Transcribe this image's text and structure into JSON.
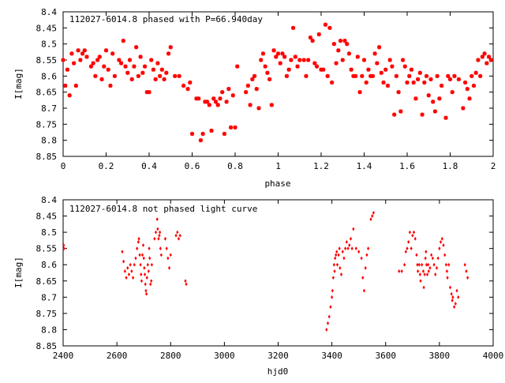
{
  "chart_data": [
    {
      "type": "scatter",
      "title": "112027-6014.8 phased with P=66.940day",
      "xlabel": "phase",
      "ylabel": "I[mag]",
      "xlim": [
        0,
        2
      ],
      "ylim": [
        8.4,
        8.85
      ],
      "y_inverted": true,
      "grid": false,
      "marker": "star",
      "color": "#ff0000",
      "xticks": [
        "0",
        "0.2",
        "0.4",
        "0.6",
        "0.8",
        "1",
        "1.2",
        "1.4",
        "1.6",
        "1.8",
        "2"
      ],
      "yticks": [
        "8.4",
        "8.45",
        "8.5",
        "8.55",
        "8.6",
        "8.65",
        "8.7",
        "8.75",
        "8.8",
        "8.85"
      ],
      "points": [
        [
          0.0,
          8.55
        ],
        [
          0.01,
          8.63
        ],
        [
          0.02,
          8.58
        ],
        [
          0.03,
          8.66
        ],
        [
          0.04,
          8.53
        ],
        [
          0.05,
          8.56
        ],
        [
          0.06,
          8.63
        ],
        [
          0.07,
          8.52
        ],
        [
          0.08,
          8.55
        ],
        [
          0.09,
          8.53
        ],
        [
          0.1,
          8.52
        ],
        [
          0.11,
          8.54
        ],
        [
          0.13,
          8.57
        ],
        [
          0.14,
          8.56
        ],
        [
          0.15,
          8.6
        ],
        [
          0.16,
          8.55
        ],
        [
          0.17,
          8.54
        ],
        [
          0.18,
          8.61
        ],
        [
          0.19,
          8.57
        ],
        [
          0.2,
          8.52
        ],
        [
          0.21,
          8.58
        ],
        [
          0.22,
          8.63
        ],
        [
          0.23,
          8.53
        ],
        [
          0.24,
          8.6
        ],
        [
          0.26,
          8.55
        ],
        [
          0.27,
          8.56
        ],
        [
          0.28,
          8.49
        ],
        [
          0.29,
          8.57
        ],
        [
          0.3,
          8.59
        ],
        [
          0.31,
          8.55
        ],
        [
          0.32,
          8.61
        ],
        [
          0.33,
          8.57
        ],
        [
          0.34,
          8.51
        ],
        [
          0.35,
          8.6
        ],
        [
          0.36,
          8.54
        ],
        [
          0.37,
          8.59
        ],
        [
          0.38,
          8.57
        ],
        [
          0.39,
          8.65
        ],
        [
          0.4,
          8.65
        ],
        [
          0.41,
          8.55
        ],
        [
          0.42,
          8.58
        ],
        [
          0.43,
          8.61
        ],
        [
          0.44,
          8.56
        ],
        [
          0.45,
          8.6
        ],
        [
          0.46,
          8.58
        ],
        [
          0.47,
          8.61
        ],
        [
          0.48,
          8.59
        ],
        [
          0.49,
          8.53
        ],
        [
          0.5,
          8.51
        ],
        [
          0.52,
          8.6
        ],
        [
          0.54,
          8.6
        ],
        [
          0.56,
          8.63
        ],
        [
          0.58,
          8.64
        ],
        [
          0.59,
          8.62
        ],
        [
          0.6,
          8.78
        ],
        [
          0.62,
          8.67
        ],
        [
          0.63,
          8.67
        ],
        [
          0.64,
          8.8
        ],
        [
          0.65,
          8.78
        ],
        [
          0.66,
          8.68
        ],
        [
          0.67,
          8.68
        ],
        [
          0.68,
          8.69
        ],
        [
          0.69,
          8.77
        ],
        [
          0.7,
          8.67
        ],
        [
          0.71,
          8.68
        ],
        [
          0.72,
          8.69
        ],
        [
          0.73,
          8.67
        ],
        [
          0.74,
          8.65
        ],
        [
          0.75,
          8.78
        ],
        [
          0.76,
          8.68
        ],
        [
          0.77,
          8.64
        ],
        [
          0.78,
          8.76
        ],
        [
          0.79,
          8.66
        ],
        [
          0.8,
          8.76
        ],
        [
          0.81,
          8.57
        ],
        [
          0.85,
          8.65
        ],
        [
          0.86,
          8.63
        ],
        [
          0.87,
          8.69
        ],
        [
          0.88,
          8.61
        ],
        [
          0.89,
          8.6
        ],
        [
          0.9,
          8.64
        ],
        [
          0.91,
          8.7
        ],
        [
          0.92,
          8.55
        ],
        [
          0.93,
          8.53
        ],
        [
          0.94,
          8.57
        ],
        [
          0.95,
          8.59
        ],
        [
          0.96,
          8.61
        ],
        [
          0.97,
          8.69
        ],
        [
          0.98,
          8.52
        ],
        [
          0.99,
          8.54
        ],
        [
          1.0,
          8.53
        ],
        [
          1.01,
          8.56
        ],
        [
          1.02,
          8.53
        ],
        [
          1.03,
          8.54
        ],
        [
          1.04,
          8.6
        ],
        [
          1.05,
          8.58
        ],
        [
          1.06,
          8.55
        ],
        [
          1.07,
          8.45
        ],
        [
          1.08,
          8.54
        ],
        [
          1.09,
          8.57
        ],
        [
          1.1,
          8.55
        ],
        [
          1.12,
          8.55
        ],
        [
          1.13,
          8.6
        ],
        [
          1.14,
          8.55
        ],
        [
          1.15,
          8.48
        ],
        [
          1.16,
          8.49
        ],
        [
          1.17,
          8.56
        ],
        [
          1.18,
          8.57
        ],
        [
          1.19,
          8.47
        ],
        [
          1.2,
          8.58
        ],
        [
          1.21,
          8.58
        ],
        [
          1.22,
          8.44
        ],
        [
          1.23,
          8.6
        ],
        [
          1.24,
          8.45
        ],
        [
          1.25,
          8.62
        ],
        [
          1.26,
          8.5
        ],
        [
          1.27,
          8.56
        ],
        [
          1.28,
          8.52
        ],
        [
          1.29,
          8.49
        ],
        [
          1.3,
          8.55
        ],
        [
          1.31,
          8.49
        ],
        [
          1.32,
          8.5
        ],
        [
          1.33,
          8.53
        ],
        [
          1.34,
          8.58
        ],
        [
          1.35,
          8.6
        ],
        [
          1.36,
          8.6
        ],
        [
          1.37,
          8.54
        ],
        [
          1.38,
          8.65
        ],
        [
          1.39,
          8.6
        ],
        [
          1.4,
          8.55
        ],
        [
          1.41,
          8.62
        ],
        [
          1.42,
          8.58
        ],
        [
          1.43,
          8.6
        ],
        [
          1.44,
          8.6
        ],
        [
          1.45,
          8.53
        ],
        [
          1.46,
          8.56
        ],
        [
          1.47,
          8.51
        ],
        [
          1.48,
          8.59
        ],
        [
          1.49,
          8.62
        ],
        [
          1.5,
          8.58
        ],
        [
          1.51,
          8.63
        ],
        [
          1.52,
          8.55
        ],
        [
          1.53,
          8.57
        ],
        [
          1.54,
          8.72
        ],
        [
          1.55,
          8.6
        ],
        [
          1.56,
          8.65
        ],
        [
          1.57,
          8.71
        ],
        [
          1.58,
          8.55
        ],
        [
          1.59,
          8.57
        ],
        [
          1.6,
          8.62
        ],
        [
          1.61,
          8.6
        ],
        [
          1.62,
          8.58
        ],
        [
          1.63,
          8.62
        ],
        [
          1.64,
          8.67
        ],
        [
          1.65,
          8.61
        ],
        [
          1.66,
          8.59
        ],
        [
          1.67,
          8.72
        ],
        [
          1.68,
          8.62
        ],
        [
          1.69,
          8.6
        ],
        [
          1.7,
          8.66
        ],
        [
          1.71,
          8.61
        ],
        [
          1.72,
          8.68
        ],
        [
          1.73,
          8.71
        ],
        [
          1.74,
          8.6
        ],
        [
          1.75,
          8.67
        ],
        [
          1.76,
          8.63
        ],
        [
          1.78,
          8.73
        ],
        [
          1.79,
          8.6
        ],
        [
          1.8,
          8.61
        ],
        [
          1.81,
          8.65
        ],
        [
          1.82,
          8.6
        ],
        [
          1.84,
          8.61
        ],
        [
          1.86,
          8.7
        ],
        [
          1.87,
          8.62
        ],
        [
          1.88,
          8.64
        ],
        [
          1.89,
          8.67
        ],
        [
          1.9,
          8.6
        ],
        [
          1.91,
          8.63
        ],
        [
          1.92,
          8.59
        ],
        [
          1.93,
          8.55
        ],
        [
          1.94,
          8.6
        ],
        [
          1.95,
          8.54
        ],
        [
          1.96,
          8.53
        ],
        [
          1.97,
          8.56
        ],
        [
          1.98,
          8.54
        ],
        [
          1.99,
          8.55
        ]
      ]
    },
    {
      "type": "scatter",
      "title": "112027-6014.8 not phased light curve",
      "xlabel": "hjd0",
      "ylabel": "I[mag]",
      "xlim": [
        2400,
        4000
      ],
      "ylim": [
        8.4,
        8.85
      ],
      "y_inverted": true,
      "grid": false,
      "marker": "dot",
      "color": "#ff0000",
      "xticks": [
        "2400",
        "2600",
        "2800",
        "3000",
        "3200",
        "3400",
        "3600",
        "3800",
        "4000"
      ],
      "yticks": [
        "8.4",
        "8.45",
        "8.5",
        "8.55",
        "8.6",
        "8.65",
        "8.7",
        "8.75",
        "8.8",
        "8.85"
      ],
      "points": [
        [
          2402,
          8.54
        ],
        [
          2403,
          8.55
        ],
        [
          2620,
          8.56
        ],
        [
          2625,
          8.59
        ],
        [
          2630,
          8.62
        ],
        [
          2635,
          8.64
        ],
        [
          2640,
          8.61
        ],
        [
          2645,
          8.63
        ],
        [
          2650,
          8.6
        ],
        [
          2655,
          8.62
        ],
        [
          2660,
          8.64
        ],
        [
          2665,
          8.6
        ],
        [
          2670,
          8.58
        ],
        [
          2675,
          8.55
        ],
        [
          2680,
          8.53
        ],
        [
          2682,
          8.52
        ],
        [
          2685,
          8.57
        ],
        [
          2688,
          8.6
        ],
        [
          2690,
          8.63
        ],
        [
          2692,
          8.65
        ],
        [
          2695,
          8.57
        ],
        [
          2698,
          8.54
        ],
        [
          2700,
          8.58
        ],
        [
          2702,
          8.61
        ],
        [
          2704,
          8.63
        ],
        [
          2706,
          8.66
        ],
        [
          2708,
          8.68
        ],
        [
          2710,
          8.69
        ],
        [
          2712,
          8.64
        ],
        [
          2715,
          8.6
        ],
        [
          2718,
          8.62
        ],
        [
          2720,
          8.55
        ],
        [
          2722,
          8.58
        ],
        [
          2725,
          8.66
        ],
        [
          2728,
          8.65
        ],
        [
          2730,
          8.6
        ],
        [
          2740,
          8.52
        ],
        [
          2745,
          8.5
        ],
        [
          2750,
          8.46
        ],
        [
          2752,
          8.49
        ],
        [
          2755,
          8.52
        ],
        [
          2758,
          8.51
        ],
        [
          2760,
          8.5
        ],
        [
          2762,
          8.55
        ],
        [
          2765,
          8.57
        ],
        [
          2780,
          8.52
        ],
        [
          2785,
          8.55
        ],
        [
          2790,
          8.58
        ],
        [
          2795,
          8.61
        ],
        [
          2800,
          8.57
        ],
        [
          2820,
          8.51
        ],
        [
          2825,
          8.5
        ],
        [
          2830,
          8.52
        ],
        [
          2835,
          8.51
        ],
        [
          2855,
          8.65
        ],
        [
          2858,
          8.66
        ],
        [
          3380,
          8.8
        ],
        [
          3385,
          8.78
        ],
        [
          3390,
          8.76
        ],
        [
          3395,
          8.73
        ],
        [
          3400,
          8.7
        ],
        [
          3402,
          8.68
        ],
        [
          3405,
          8.64
        ],
        [
          3408,
          8.6
        ],
        [
          3410,
          8.62
        ],
        [
          3412,
          8.58
        ],
        [
          3415,
          8.57
        ],
        [
          3418,
          8.56
        ],
        [
          3420,
          8.6
        ],
        [
          3425,
          8.57
        ],
        [
          3428,
          8.55
        ],
        [
          3430,
          8.61
        ],
        [
          3435,
          8.63
        ],
        [
          3440,
          8.56
        ],
        [
          3445,
          8.58
        ],
        [
          3450,
          8.55
        ],
        [
          3455,
          8.53
        ],
        [
          3460,
          8.55
        ],
        [
          3465,
          8.54
        ],
        [
          3470,
          8.52
        ],
        [
          3475,
          8.55
        ],
        [
          3480,
          8.49
        ],
        [
          3490,
          8.55
        ],
        [
          3500,
          8.56
        ],
        [
          3510,
          8.58
        ],
        [
          3515,
          8.64
        ],
        [
          3520,
          8.68
        ],
        [
          3525,
          8.61
        ],
        [
          3530,
          8.57
        ],
        [
          3535,
          8.55
        ],
        [
          3545,
          8.46
        ],
        [
          3550,
          8.45
        ],
        [
          3555,
          8.44
        ],
        [
          3650,
          8.62
        ],
        [
          3660,
          8.62
        ],
        [
          3670,
          8.6
        ],
        [
          3675,
          8.56
        ],
        [
          3680,
          8.55
        ],
        [
          3685,
          8.53
        ],
        [
          3690,
          8.5
        ],
        [
          3695,
          8.55
        ],
        [
          3700,
          8.51
        ],
        [
          3705,
          8.5
        ],
        [
          3710,
          8.52
        ],
        [
          3715,
          8.57
        ],
        [
          3718,
          8.6
        ],
        [
          3720,
          8.62
        ],
        [
          3725,
          8.6
        ],
        [
          3728,
          8.63
        ],
        [
          3730,
          8.65
        ],
        [
          3735,
          8.6
        ],
        [
          3740,
          8.62
        ],
        [
          3742,
          8.67
        ],
        [
          3745,
          8.63
        ],
        [
          3748,
          8.58
        ],
        [
          3750,
          8.56
        ],
        [
          3752,
          8.6
        ],
        [
          3755,
          8.63
        ],
        [
          3758,
          8.6
        ],
        [
          3760,
          8.62
        ],
        [
          3765,
          8.61
        ],
        [
          3770,
          8.57
        ],
        [
          3775,
          8.58
        ],
        [
          3780,
          8.6
        ],
        [
          3785,
          8.63
        ],
        [
          3790,
          8.61
        ],
        [
          3795,
          8.58
        ],
        [
          3800,
          8.55
        ],
        [
          3805,
          8.53
        ],
        [
          3810,
          8.52
        ],
        [
          3815,
          8.54
        ],
        [
          3820,
          8.57
        ],
        [
          3825,
          8.6
        ],
        [
          3828,
          8.62
        ],
        [
          3830,
          8.64
        ],
        [
          3835,
          8.6
        ],
        [
          3840,
          8.67
        ],
        [
          3845,
          8.69
        ],
        [
          3848,
          8.71
        ],
        [
          3850,
          8.7
        ],
        [
          3855,
          8.73
        ],
        [
          3860,
          8.72
        ],
        [
          3865,
          8.68
        ],
        [
          3870,
          8.7
        ],
        [
          3895,
          8.6
        ],
        [
          3900,
          8.62
        ],
        [
          3905,
          8.64
        ]
      ]
    }
  ]
}
